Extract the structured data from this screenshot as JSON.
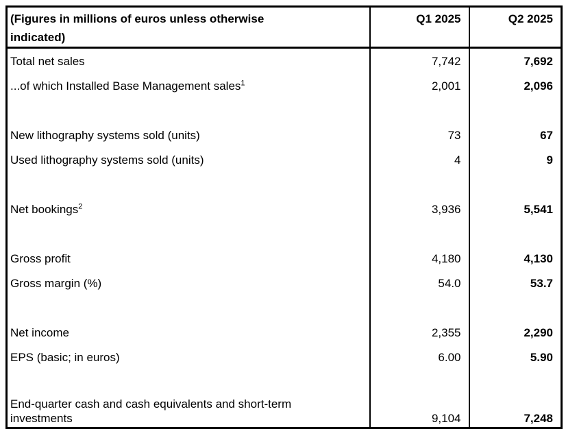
{
  "meta": {
    "background_color": "#ffffff",
    "border_color": "#000000",
    "text_color": "#000000"
  },
  "table": {
    "header": {
      "label_line1": "(Figures in millions of euros unless otherwise",
      "label_line2": "indicated)",
      "q1": "Q1 2025",
      "q2": "Q2 2025"
    },
    "rows": [
      {
        "label": "Total net sales",
        "q1": "7,742",
        "q2": "7,692"
      },
      {
        "label": "...of which Installed Base Management sales",
        "sup": "1",
        "q1": "2,001",
        "q2": "2,096"
      },
      {
        "label": "",
        "q1": "",
        "q2": ""
      },
      {
        "label": "New lithography systems sold (units)",
        "q1": "73",
        "q2": "67"
      },
      {
        "label": "Used lithography systems sold (units)",
        "q1": "4",
        "q2": "9"
      },
      {
        "label": "",
        "q1": "",
        "q2": ""
      },
      {
        "label": "Net bookings",
        "sup": "2",
        "q1": "3,936",
        "q2": "5,541"
      },
      {
        "label": "",
        "q1": "",
        "q2": ""
      },
      {
        "label": "Gross profit",
        "q1": "4,180",
        "q2": "4,130"
      },
      {
        "label": "Gross margin (%)",
        "q1": "54.0",
        "q2": "53.7"
      },
      {
        "label": "",
        "q1": "",
        "q2": ""
      },
      {
        "label": "Net income",
        "q1": "2,355",
        "q2": "2,290"
      },
      {
        "label": "EPS (basic; in euros)",
        "q1": "6.00",
        "q2": "5.90"
      },
      {
        "label": "",
        "q1": "",
        "q2": ""
      },
      {
        "label_line1": "End-quarter cash and cash equivalents and short-term",
        "label_line2": "investments",
        "q1": "9,104",
        "q2": "7,248"
      }
    ]
  }
}
